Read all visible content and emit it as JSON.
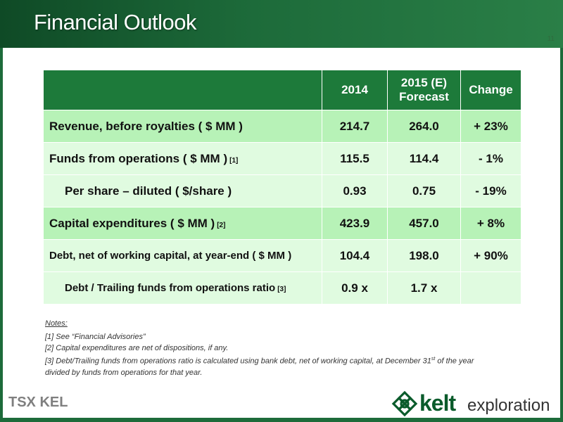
{
  "header": {
    "title": "Financial Outlook",
    "page_number": "11"
  },
  "table": {
    "columns": [
      "",
      "2014",
      "2015 (E)",
      "Forecast",
      "Change"
    ],
    "rows": [
      {
        "label": "Revenue, before royalties ( $ MM )",
        "footnote": "",
        "v2014": "214.7",
        "v2015": "264.0",
        "change": "+ 23%"
      },
      {
        "label": "Funds from operations ( $ MM )",
        "footnote": "[1]",
        "v2014": "115.5",
        "v2015": "114.4",
        "change": "- 1%"
      },
      {
        "label": "Per share – diluted ( $/share )",
        "footnote": "",
        "v2014": "0.93",
        "v2015": "0.75",
        "change": "- 19%"
      },
      {
        "label": "Capital expenditures ( $ MM )",
        "footnote": "[2]",
        "v2014": "423.9",
        "v2015": "457.0",
        "change": "+ 8%"
      },
      {
        "label": "Debt, net of working capital, at year-end ( $ MM )",
        "footnote": "",
        "v2014": "104.4",
        "v2015": "198.0",
        "change": "+ 90%"
      },
      {
        "label": "Debt / Trailing funds from operations ratio",
        "footnote": "[3]",
        "v2014": "0.9 x",
        "v2015": "1.7 x",
        "change": ""
      }
    ]
  },
  "notes": {
    "heading": "Notes:",
    "note1": "[1] See “Financial Advisories”",
    "note2": "[2] Capital expenditures are net of dispositions, if any.",
    "note3_a": "[3] Debt/Trailing funds from operations ratio is calculated using bank debt, net of working capital, at December 31",
    "note3_sup": "st",
    "note3_b": " of the year",
    "note3_c": "divided by funds from operations for that year."
  },
  "footer": {
    "tsx_text": "TSX KEL",
    "brand_word": "kelt",
    "brand_sub": "exploration",
    "logo_icon": "celtic-knot-icon"
  },
  "colors": {
    "header_green": "#1d6b3a",
    "table_header": "#1d7a3a",
    "row_dark": "#b7f2b7",
    "row_light": "#e0fbe0",
    "funds_text": "#1f7a32"
  }
}
